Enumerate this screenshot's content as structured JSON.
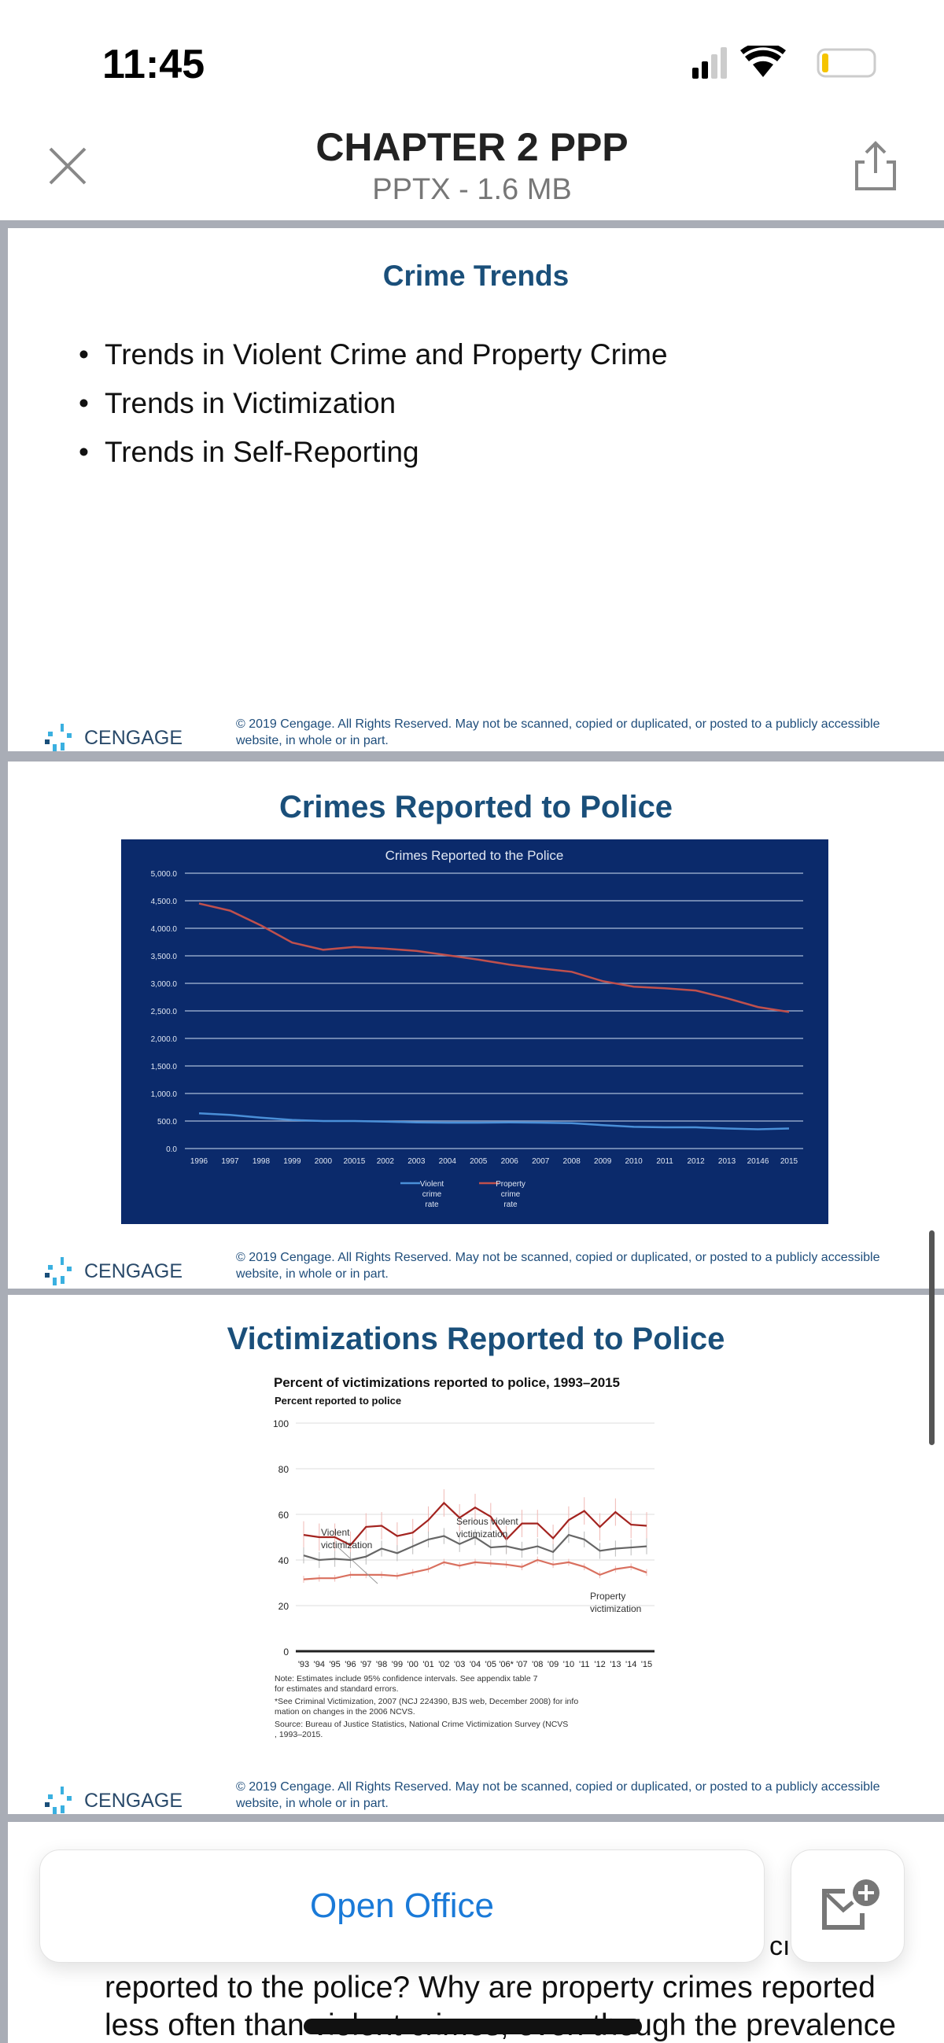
{
  "status_bar": {
    "time": "11:45",
    "signal_bars": 2,
    "battery_level": 0.15,
    "battery_color": "#f5c400"
  },
  "header": {
    "title": "CHAPTER 2 PPP",
    "subtitle": "PPTX - 1.6 MB",
    "close_icon": "close-icon",
    "share_icon": "share-icon"
  },
  "slides": [
    {
      "title": "Crime Trends",
      "bullets": [
        "Trends in Violent Crime and Property Crime",
        "Trends in Victimization",
        "Trends in Self-Reporting"
      ],
      "footer": {
        "logo": "CENGAGE",
        "copyright": "© 2019 Cengage. All Rights Reserved. May not be scanned, copied or duplicated, or posted to a publicly accessible website, in whole or in part."
      }
    },
    {
      "title": "Crimes Reported to Police",
      "footer": {
        "logo": "CENGAGE",
        "copyright": "© 2019 Cengage. All Rights Reserved. May not be scanned, copied or duplicated, or posted to a publicly accessible website, in whole or in part."
      }
    },
    {
      "title": "Victimizations Reported to Police",
      "footer": {
        "logo": "CENGAGE",
        "copyright": "© 2019 Cengage. All Rights Reserved. May not be scanned, copied or duplicated, or posted to a publicly accessible website, in whole or in part."
      }
    }
  ],
  "chart_data": [
    {
      "type": "line",
      "title": "Crimes Reported to the Police",
      "background": "#0b2a6b",
      "categories": [
        "1996",
        "1997",
        "1998",
        "1999",
        "2000",
        "20015",
        "2002",
        "2003",
        "2004",
        "2005",
        "2006",
        "2007",
        "2008",
        "2009",
        "2010",
        "2011",
        "2012",
        "2013",
        "20146",
        "2015"
      ],
      "yticks": [
        "0.0",
        "500.0",
        "1,000.0",
        "1,500.0",
        "2,000.0",
        "2,500.0",
        "3,000.0",
        "3,500.0",
        "4,000.0",
        "4,500.0",
        "5,000.0"
      ],
      "ylim": [
        0,
        5000
      ],
      "grid": true,
      "legend": "bottom",
      "series": [
        {
          "name": "Violent crime rate",
          "legend_lines": [
            "Violent",
            "crime",
            "rate"
          ],
          "color": "#4a8fd8",
          "values": [
            640,
            610,
            560,
            520,
            500,
            500,
            490,
            475,
            470,
            470,
            475,
            470,
            460,
            425,
            395,
            385,
            385,
            365,
            350,
            365
          ]
        },
        {
          "name": "Property crime rate",
          "legend_lines": [
            "Property",
            "crime",
            "rate"
          ],
          "color": "#c0504d",
          "values": [
            4450,
            4320,
            4050,
            3740,
            3610,
            3660,
            3630,
            3590,
            3510,
            3430,
            3340,
            3270,
            3210,
            3040,
            2940,
            2910,
            2870,
            2730,
            2570,
            2480
          ]
        }
      ]
    },
    {
      "type": "line",
      "title": "Percent of victimizations reported to police, 1993–2015",
      "ylabel": "Percent reported to police",
      "categories": [
        "'93",
        "'94",
        "'95",
        "'96",
        "'97",
        "'98",
        "'99",
        "'00",
        "'01",
        "'02",
        "'03",
        "'04",
        "'05",
        "'06*",
        "'07",
        "'08",
        "'09",
        "'10",
        "'11",
        "'12",
        "'13",
        "'14",
        "'15"
      ],
      "yticks": [
        "0",
        "20",
        "40",
        "60",
        "80",
        "100"
      ],
      "ylim": [
        0,
        100
      ],
      "grid": true,
      "series": [
        {
          "name": "Serious violent victimization",
          "label_lines": [
            "Serious violent",
            "victimization"
          ],
          "color": "#a3231f",
          "ci": 6,
          "values": [
            51,
            50,
            50,
            46.5,
            54.5,
            55,
            50.5,
            52,
            57.5,
            65,
            58.5,
            63,
            59,
            49,
            56,
            56,
            49.5,
            57.5,
            61.5,
            54.5,
            61,
            55.5,
            55
          ]
        },
        {
          "name": "Violent victimization",
          "label_lines": [
            "Violent",
            "victimization"
          ],
          "color": "#666666",
          "ci": 3.5,
          "values": [
            42,
            40,
            40.5,
            40,
            41.5,
            45,
            43,
            46,
            49,
            50.5,
            47,
            50,
            45.5,
            46,
            44.5,
            46,
            43.5,
            51,
            49,
            44,
            45,
            45.5,
            46
          ]
        },
        {
          "name": "Property victimization",
          "label_lines": [
            "Property",
            "victimization"
          ],
          "color": "#d9705f",
          "ci": 1.5,
          "values": [
            31.5,
            32,
            32,
            33.5,
            33.5,
            33.5,
            33,
            34.5,
            36,
            39,
            37.5,
            39,
            38.5,
            38,
            37,
            40,
            38,
            39,
            37,
            33.5,
            36,
            37,
            34.5
          ]
        }
      ],
      "notes": [
        "Note: Estimates include 95% confidence intervals. See appendix table 7 for estimates and standard errors.",
        "*See Criminal Victimization, 2007 (NCJ 224390, BJS web, December 2008) for information on changes in the 2006 NCVS.",
        "Source: Bureau of Justice Statistics, National Crime Victimization Survey (NCVS), 1993–2015."
      ]
    }
  ],
  "bottom_bar": {
    "open_button": "Open Office",
    "open_color": "#1a7ad8",
    "add_icon": "add-to-inbox-icon",
    "partial_text": "cı"
  },
  "body_text": [
    "reported to the police? Why are property crimes reported",
    "less often than violent crimes, even though the prevalence"
  ]
}
